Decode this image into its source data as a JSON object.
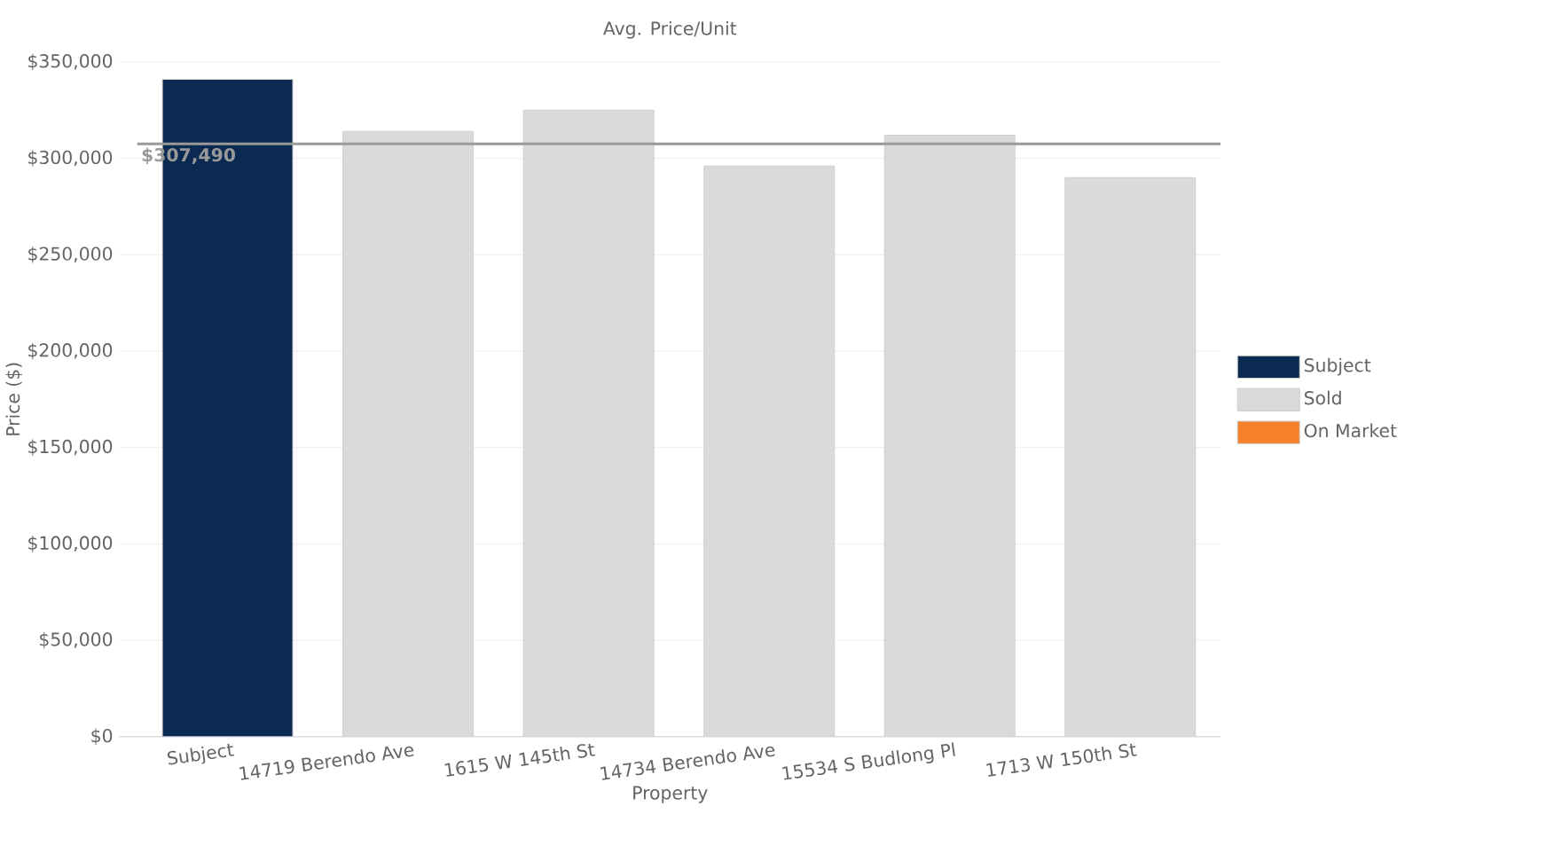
{
  "chart_data": {
    "type": "bar",
    "title": "Avg. Price/Unit",
    "xlabel": "Property",
    "ylabel": "Price ($)",
    "categories": [
      "Subject",
      "14719 Berendo Ave",
      "1615 W 145th St",
      "14734 Berendo Ave",
      "15534 S Budlong Pl",
      "1713 W 150th St"
    ],
    "series": [
      {
        "name": "Subject",
        "color": "#0b2a52",
        "values": [
          341000,
          null,
          null,
          null,
          null,
          null
        ]
      },
      {
        "name": "Sold",
        "color": "#d9dbdb",
        "values": [
          null,
          314000,
          325000,
          296000,
          312000,
          290000
        ]
      },
      {
        "name": "On Market",
        "color": "#f5822a",
        "values": [
          null,
          null,
          null,
          null,
          null,
          null
        ]
      }
    ],
    "ylim": [
      0,
      350000
    ],
    "yticks": [
      {
        "value": 0,
        "label": "$0"
      },
      {
        "value": 50000,
        "label": "$50,000"
      },
      {
        "value": 100000,
        "label": "$100,000"
      },
      {
        "value": 150000,
        "label": "$150,000"
      },
      {
        "value": 200000,
        "label": "$200,000"
      },
      {
        "value": 250000,
        "label": "$250,000"
      },
      {
        "value": 300000,
        "label": "$300,000"
      },
      {
        "value": 350000,
        "label": "$350,000"
      }
    ],
    "ref_lines": [
      {
        "axis": "y",
        "value": 307490,
        "label": "$307,490",
        "color": "#999999"
      }
    ],
    "grid": "y",
    "legend": "right"
  }
}
